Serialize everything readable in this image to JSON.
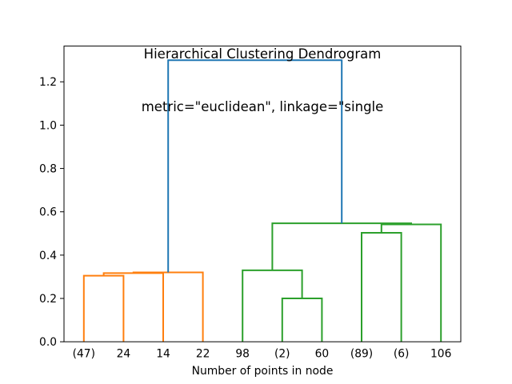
{
  "chart_data": {
    "type": "dendrogram",
    "title": "Hierarchical Clustering Dendrogram",
    "subtitle": "metric=\"euclidean\", linkage=\"single",
    "xlabel": "Number of points in node",
    "xlim": [
      0,
      100
    ],
    "ylim": [
      0,
      1.365
    ],
    "grid": false,
    "legend": "none",
    "yticks": {
      "values": [
        0,
        0.2,
        0.4,
        0.6,
        0.8,
        1.0,
        1.2
      ],
      "labels": [
        "0.0",
        "0.2",
        "0.4",
        "0.6",
        "0.8",
        "1.0",
        "1.2"
      ]
    },
    "leaves": {
      "labels": [
        "(47)",
        "24",
        "14",
        "22",
        "98",
        "(2)",
        "60",
        "(89)",
        "(6)",
        "106"
      ],
      "positions": [
        5,
        15,
        25,
        35,
        45,
        55,
        65,
        75,
        85,
        95
      ]
    },
    "colors": {
      "above_threshold": "#1f77b4",
      "cluster1": "#ff7f0e",
      "cluster2": "#2ca02c",
      "axes": "#000000",
      "text": "#000000"
    },
    "links": [
      {
        "x1": 5,
        "y1": 0,
        "x2": 15,
        "y2": 0,
        "h": 0.305,
        "color": "cluster1"
      },
      {
        "x1": 10,
        "y1": 0.305,
        "x2": 25,
        "y2": 0,
        "h": 0.317,
        "color": "cluster1"
      },
      {
        "x1": 17.5,
        "y1": 0.317,
        "x2": 35,
        "y2": 0,
        "h": 0.32,
        "color": "cluster1"
      },
      {
        "x1": 55,
        "y1": 0,
        "x2": 65,
        "y2": 0,
        "h": 0.2,
        "color": "cluster2"
      },
      {
        "x1": 45,
        "y1": 0,
        "x2": 60,
        "y2": 0.2,
        "h": 0.33,
        "color": "cluster2"
      },
      {
        "x1": 75,
        "y1": 0,
        "x2": 85,
        "y2": 0,
        "h": 0.503,
        "color": "cluster2"
      },
      {
        "x1": 80,
        "y1": 0.503,
        "x2": 95,
        "y2": 0,
        "h": 0.542,
        "color": "cluster2"
      },
      {
        "x1": 52.5,
        "y1": 0.33,
        "x2": 87.5,
        "y2": 0.542,
        "h": 0.547,
        "color": "cluster2"
      },
      {
        "x1": 26.25,
        "y1": 0.32,
        "x2": 70,
        "y2": 0.547,
        "h": 1.3,
        "color": "above_threshold"
      }
    ]
  }
}
